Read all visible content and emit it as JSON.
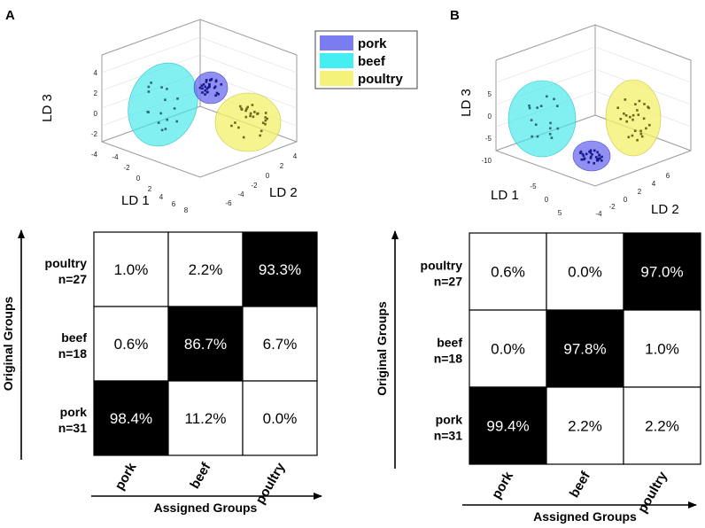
{
  "colors": {
    "pork": "#6b6bef",
    "beef": "#3fe6ea",
    "poultry": "#f3f06a",
    "pork_point": "#1a1a8c",
    "beef_point": "#2e6b6e",
    "poultry_point": "#6b6a1c",
    "cell_dark": "#000000",
    "cell_light": "#ffffff"
  },
  "legend": {
    "items": [
      {
        "label": "pork",
        "color": "#7b7bf2"
      },
      {
        "label": "beef",
        "color": "#45eef0"
      },
      {
        "label": "poultry",
        "color": "#f5f27a"
      }
    ]
  },
  "panels": [
    {
      "label": "A",
      "plot3d": {
        "axis_x": "LD 1",
        "axis_y": "LD 2",
        "axis_z": "LD 3",
        "z_ticks": [
          "4",
          "2",
          "0",
          "-2",
          "-4"
        ],
        "x_ticks": [
          "-4",
          "-2",
          "0",
          "2",
          "4",
          "6",
          "8"
        ],
        "y_ticks": [
          "-6",
          "-4",
          "-2",
          "0",
          "2",
          "4"
        ]
      }
    },
    {
      "label": "B",
      "plot3d": {
        "axis_x": "LD 1",
        "axis_y": "LD 2",
        "axis_z": "LD 3",
        "z_ticks": [
          "5",
          "0",
          "-5",
          "-10"
        ],
        "x_ticks": [
          "-5",
          "0",
          "5"
        ],
        "y_ticks": [
          "-4",
          "-2",
          "0",
          "2",
          "4",
          "6"
        ]
      }
    }
  ],
  "chart_data": [
    {
      "type": "table",
      "panel": "A",
      "xlabel": "Assigned Groups",
      "ylabel": "Original Groups",
      "columns": [
        "pork",
        "beef",
        "poultry"
      ],
      "rows": [
        {
          "name": "poultry",
          "n": "n=27",
          "values": [
            "1.0%",
            "2.2%",
            "93.3%"
          ],
          "diag": 2
        },
        {
          "name": "beef",
          "n": "n=18",
          "values": [
            "0.6%",
            "86.7%",
            "6.7%"
          ],
          "diag": 1
        },
        {
          "name": "pork",
          "n": "n=31",
          "values": [
            "98.4%",
            "11.2%",
            "0.0%"
          ],
          "diag": 0
        }
      ]
    },
    {
      "type": "table",
      "panel": "B",
      "xlabel": "Assigned Groups",
      "ylabel": "Original Groups",
      "columns": [
        "pork",
        "beef",
        "poultry"
      ],
      "rows": [
        {
          "name": "poultry",
          "n": "n=27",
          "values": [
            "0.6%",
            "0.0%",
            "97.0%"
          ],
          "diag": 2
        },
        {
          "name": "beef",
          "n": "n=18",
          "values": [
            "0.0%",
            "97.8%",
            "1.0%"
          ],
          "diag": 1
        },
        {
          "name": "pork",
          "n": "n=31",
          "values": [
            "99.4%",
            "2.2%",
            "2.2%"
          ],
          "diag": 0
        }
      ]
    }
  ]
}
